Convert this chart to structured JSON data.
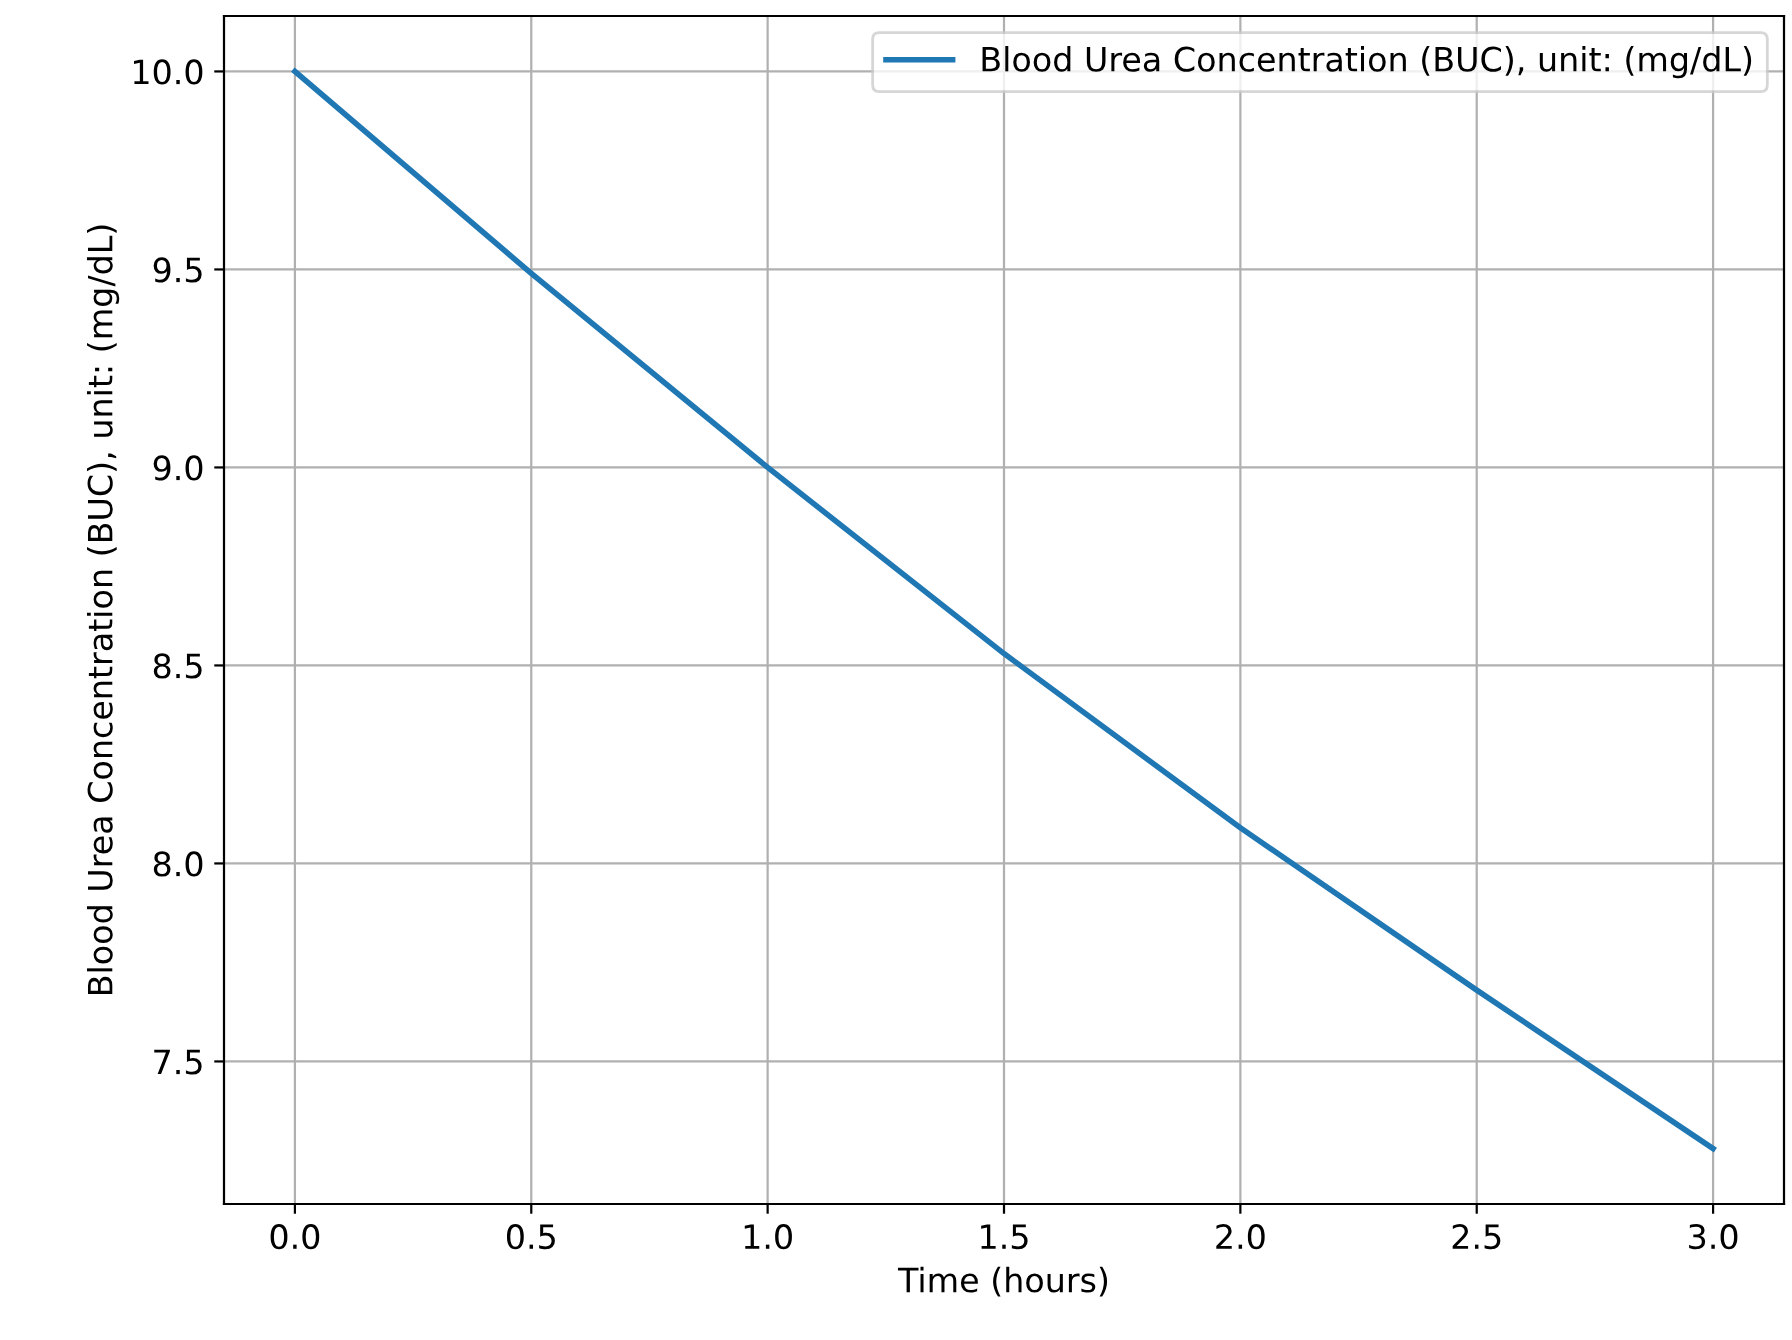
{
  "chart_data": {
    "type": "line",
    "xlabel": "Time (hours)",
    "ylabel": "Blood Urea Concentration (BUC), unit: (mg/dL)",
    "series": [
      {
        "name": "Blood Urea Concentration (BUC), unit: (mg/dL)",
        "color": "#1f77b4",
        "x": [
          0,
          0.5,
          1.0,
          1.5,
          2.0,
          2.5,
          3.0
        ],
        "values": [
          10.0,
          9.49,
          9.0,
          8.53,
          8.09,
          7.68,
          7.28
        ]
      }
    ],
    "xlim": [
      -0.15,
      3.15
    ],
    "ylim": [
      7.14,
      10.14
    ],
    "xticks": [
      {
        "value": 0,
        "label": "0.0"
      },
      0.5,
      {
        "value": 1,
        "label": "1.0"
      },
      1.5,
      {
        "value": 2,
        "label": "2.0"
      },
      2.5,
      {
        "value": 3,
        "label": "3.0"
      }
    ],
    "yticks": [
      7.5,
      {
        "value": 8,
        "label": "8.0"
      },
      8.5,
      {
        "value": 9,
        "label": "9.0"
      },
      9.5,
      {
        "value": 10,
        "label": "10.0"
      }
    ],
    "grid": true,
    "legend": "top right",
    "marker": "none",
    "line_style": "solid"
  }
}
